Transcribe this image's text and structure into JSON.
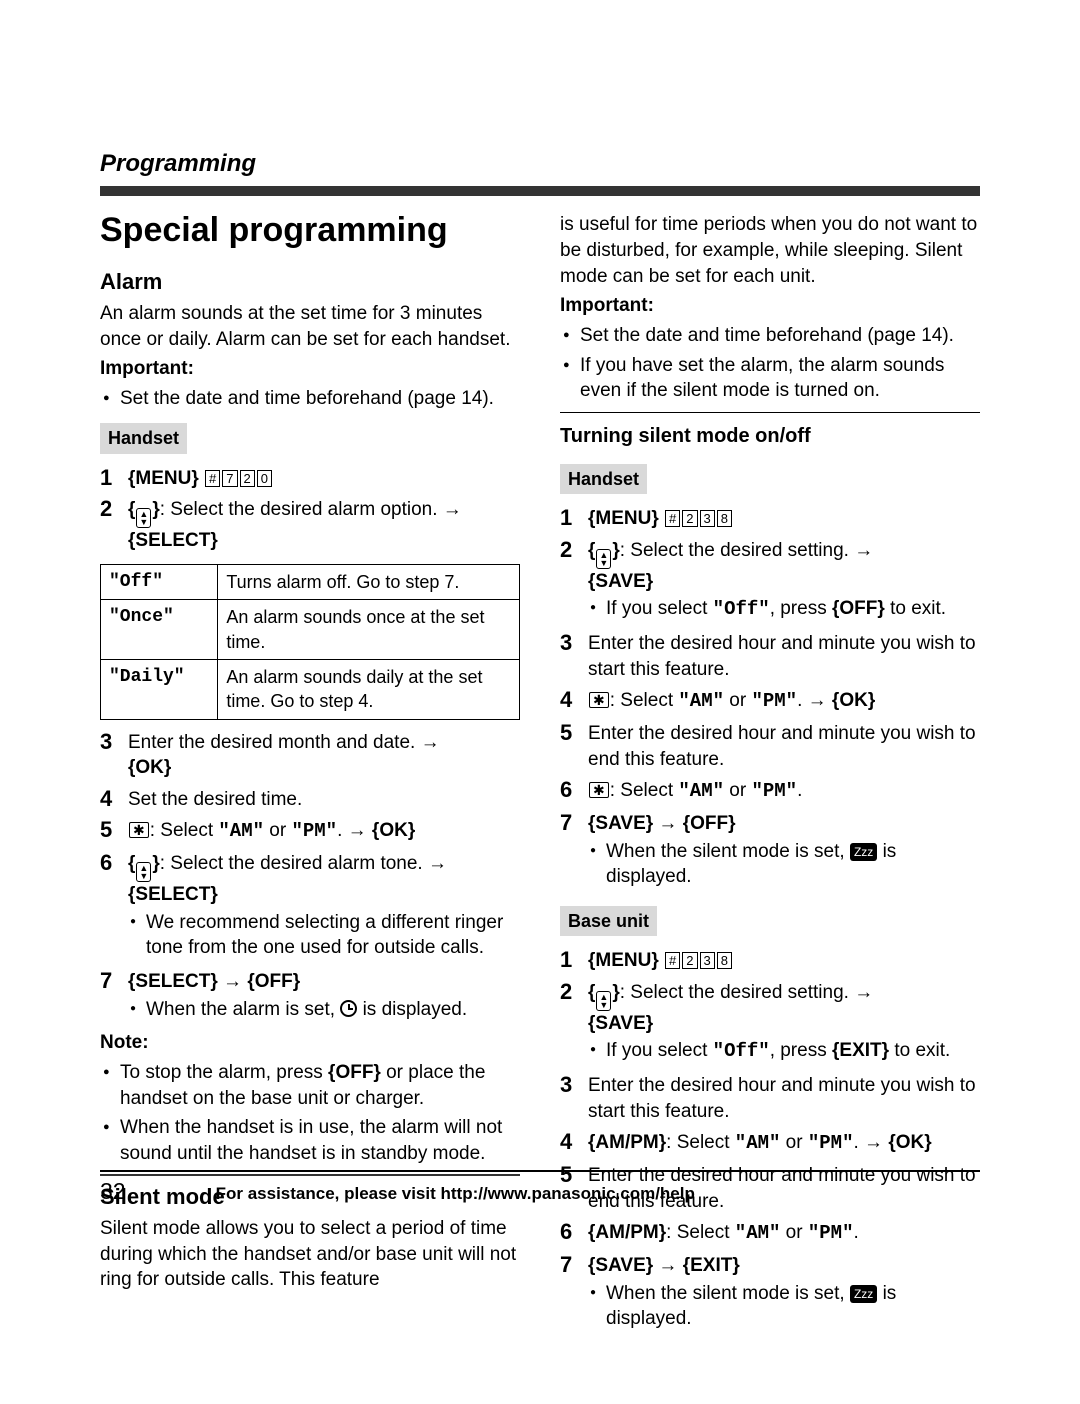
{
  "breadcrumb": "Programming",
  "section_title": "Special programming",
  "alarm": {
    "heading": "Alarm",
    "intro": "An alarm sounds at the set time for 3 minutes once or daily. Alarm can be set for each handset.",
    "important_label": "Important:",
    "important_items": [
      "Set the date and time beforehand (page 14)."
    ],
    "handset_label": "Handset",
    "step1_menu": "MENU",
    "step1_keys": [
      "#",
      "7",
      "2",
      "0"
    ],
    "step2_text": ": Select the desired alarm option. →",
    "step2_select": "SELECT",
    "table": {
      "r1c1": "\"Off\"",
      "r1c2": "Turns alarm off. Go to step 7.",
      "r2c1": "\"Once\"",
      "r2c2": "An alarm sounds once at the set time.",
      "r3c1": "\"Daily\"",
      "r3c2": "An alarm sounds daily at the set time. Go to step 4."
    },
    "step3_a": "Enter the desired month and date. →",
    "step3_b": "OK",
    "step4": "Set the desired time.",
    "step5_a": ": Select ",
    "step5_am": "\"AM\"",
    "step5_or": " or ",
    "step5_pm": "\"PM\"",
    "step5_b": ". → ",
    "step5_ok": "OK",
    "step6_a": ": Select the desired alarm tone. →",
    "step6_select": "SELECT",
    "step6_note": "We recommend selecting a different ringer tone from the one used for outside calls.",
    "step7_select": "SELECT",
    "step7_off": "OFF",
    "step7_note_a": "When the alarm is set, ",
    "step7_note_b": " is displayed.",
    "note_label": "Note:",
    "notes": [
      "To stop the alarm, press {OFF} or place the handset on the base unit or charger.",
      "When the handset is in use, the alarm will not sound until the handset is in standby mode."
    ]
  },
  "silent": {
    "heading": "Silent mode",
    "p1": "Silent mode allows you to select a period of time during which the handset and/or base unit will not ring for outside calls. This feature",
    "p2": "is useful for time periods when you do not want to be disturbed, for example, while sleeping. Silent mode can be set for each unit.",
    "important_label": "Important:",
    "important_items": [
      "Set the date and time beforehand (page 14).",
      "If you have set the alarm, the alarm sounds even if the silent mode is turned on."
    ],
    "sub_heading": "Turning silent mode on/off",
    "handset_label": "Handset",
    "hs_step1_menu": "MENU",
    "hs_step1_keys": [
      "#",
      "2",
      "3",
      "8"
    ],
    "hs_step2_a": ": Select the desired setting. →",
    "hs_step2_save": "SAVE",
    "hs_step2_note_a": "If you select ",
    "hs_step2_off": "\"Off\"",
    "hs_step2_note_b": ", press ",
    "hs_step2_offbtn": "OFF",
    "hs_step2_note_c": " to exit.",
    "hs_step3": "Enter the desired hour and minute you wish to start this feature.",
    "hs_step4_a": ": Select ",
    "hs_step4_am": "\"AM\"",
    "hs_step4_or": " or ",
    "hs_step4_pm": "\"PM\"",
    "hs_step4_b": ". → ",
    "hs_step4_ok": "OK",
    "hs_step5": "Enter the desired hour and minute you wish to end this feature.",
    "hs_step6_a": ": Select ",
    "hs_step6_am": "\"AM\"",
    "hs_step6_or": " or ",
    "hs_step6_pm": "\"PM\"",
    "hs_step6_b": ".",
    "hs_step7_save": "SAVE",
    "hs_step7_off": "OFF",
    "hs_step7_note_a": "When the silent mode is set, ",
    "hs_step7_note_b": " is displayed.",
    "base_label": "Base unit",
    "bs_step1_menu": "MENU",
    "bs_step1_keys": [
      "#",
      "2",
      "3",
      "8"
    ],
    "bs_step2_a": ": Select the desired setting. →",
    "bs_step2_save": "SAVE",
    "bs_step2_note_a": "If you select ",
    "bs_step2_off": "\"Off\"",
    "bs_step2_note_b": ", press ",
    "bs_step2_exit": "EXIT",
    "bs_step2_note_c": " to exit.",
    "bs_step3": "Enter the desired hour and minute you wish to start this feature.",
    "bs_step4_ampm": "AM/PM",
    "bs_step4_a": ": Select ",
    "bs_step4_am": "\"AM\"",
    "bs_step4_or": " or ",
    "bs_step4_pm": "\"PM\"",
    "bs_step4_b": ". → ",
    "bs_step4_ok": "OK",
    "bs_step5": "Enter the desired hour and minute you wish to end this feature.",
    "bs_step6_ampm": "AM/PM",
    "bs_step6_a": ": Select ",
    "bs_step6_am": "\"AM\"",
    "bs_step6_or": " or ",
    "bs_step6_pm": "\"PM\"",
    "bs_step6_b": ".",
    "bs_step7_save": "SAVE",
    "bs_step7_exit": "EXIT",
    "bs_step7_note_a": "When the silent mode is set, ",
    "bs_step7_note_b": " is displayed."
  },
  "footer": {
    "page": "32",
    "text": "For assistance, please visit http://www.panasonic.com/help"
  },
  "zzz": "Zzz"
}
